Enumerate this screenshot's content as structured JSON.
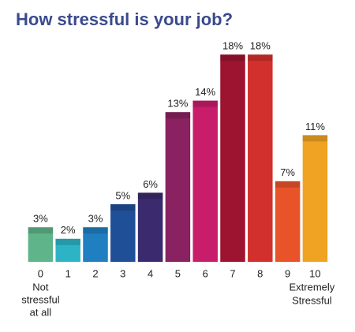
{
  "chart_data": {
    "type": "bar",
    "title": "How stressful is your job?",
    "categories": [
      "0",
      "1",
      "2",
      "3",
      "4",
      "5",
      "6",
      "7",
      "8",
      "9",
      "10"
    ],
    "values": [
      3,
      2,
      3,
      5,
      6,
      13,
      14,
      18,
      18,
      7,
      11
    ],
    "value_labels": [
      "3%",
      "2%",
      "3%",
      "5%",
      "6%",
      "13%",
      "14%",
      "18%",
      "18%",
      "7%",
      "11%"
    ],
    "colors": [
      "#5fb48a",
      "#2cb4c6",
      "#1f7fc0",
      "#1f4f96",
      "#3b2a6e",
      "#8a2160",
      "#c81d6a",
      "#9c1430",
      "#d2302c",
      "#e8532a",
      "#f0a323"
    ],
    "low_label": [
      "Not",
      "stressful",
      "at all"
    ],
    "high_label": [
      "Extremely",
      "Stressful"
    ]
  }
}
